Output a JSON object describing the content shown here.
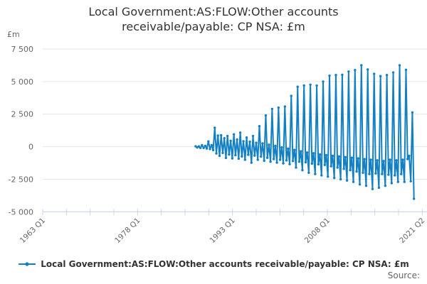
{
  "title": {
    "line1": "Local Government:AS:FLOW:Other accounts",
    "line2": "receivable/payable: CP NSA: £m"
  },
  "y_axis": {
    "unit_label": "£m",
    "tick_labels": [
      "7 500",
      "5 000",
      "2 500",
      "0",
      "-2 500",
      "-5 000"
    ],
    "tick_values": [
      7500,
      5000,
      2500,
      0,
      -2500,
      -5000
    ]
  },
  "x_axis": {
    "tick_labels": [
      "1963 Q1",
      "1978 Q1",
      "1993 Q1",
      "2008 Q1",
      "2021 Q2"
    ]
  },
  "legend": {
    "label": "Local Government:AS:FLOW:Other accounts receivable/payable: CP NSA: £m",
    "marker": "line-with-dot-icon"
  },
  "source_label": "Source:",
  "colors": {
    "accent": "#1380c4",
    "grid": "#e6e6e6",
    "axis": "#ccd6eb",
    "tick_text": "#666666",
    "title_text": "#333333"
  },
  "chart_data": {
    "type": "line",
    "title": "Local Government:AS:FLOW:Other accounts receivable/payable: CP NSA: £m",
    "unit": "£m",
    "frequency": "quarterly",
    "start_period": "1987 Q1",
    "end_period": "2021 Q2",
    "x_axis_start": "1963 Q1",
    "x_tick_labels": [
      "1963 Q1",
      "1978 Q1",
      "1993 Q1",
      "2008 Q1",
      "2021 Q2"
    ],
    "y_tick_values": [
      7500,
      5000,
      2500,
      0,
      -2500,
      -5000
    ],
    "ylim": [
      -5000,
      7500
    ],
    "grid": "horizontal",
    "legend_position": "bottom",
    "markers": true,
    "values": [
      30,
      -60,
      20,
      -90,
      120,
      -100,
      60,
      -140,
      400,
      -180,
      120,
      -260,
      1450,
      -520,
      850,
      -700,
      880,
      -480,
      650,
      -860,
      820,
      -600,
      450,
      -900,
      950,
      -650,
      550,
      -920,
      1080,
      -750,
      420,
      -1000,
      700,
      -620,
      380,
      -1230,
      820,
      -680,
      300,
      -1000,
      1575,
      -760,
      250,
      -1080,
      2400,
      -850,
      150,
      -1150,
      2900,
      -950,
      60,
      -1220,
      3000,
      -1000,
      -50,
      -1280,
      3080,
      -1050,
      -150,
      -1340,
      3900,
      -1100,
      -250,
      -1600,
      4600,
      -1150,
      -350,
      -1800,
      4700,
      -1200,
      -450,
      -2000,
      4760,
      -1300,
      -500,
      -2100,
      4690,
      -1350,
      -600,
      -2200,
      5000,
      -1400,
      -650,
      -2300,
      5450,
      -1500,
      -700,
      -2400,
      5500,
      -1600,
      -750,
      -2500,
      5520,
      -1700,
      -800,
      -2600,
      5770,
      -1800,
      -850,
      -2700,
      5880,
      -1900,
      -900,
      -2900,
      6250,
      -2000,
      -950,
      -3000,
      5930,
      -2100,
      -1000,
      -3250,
      5600,
      -2050,
      -1050,
      -3150,
      5420,
      -2100,
      -1100,
      -3000,
      5500,
      -2150,
      -1000,
      -2800,
      5700,
      -2200,
      -1050,
      -2700,
      6250,
      -2100,
      -1000,
      -2700,
      5900,
      -950,
      -700,
      -2650,
      2630,
      -4000
    ]
  }
}
